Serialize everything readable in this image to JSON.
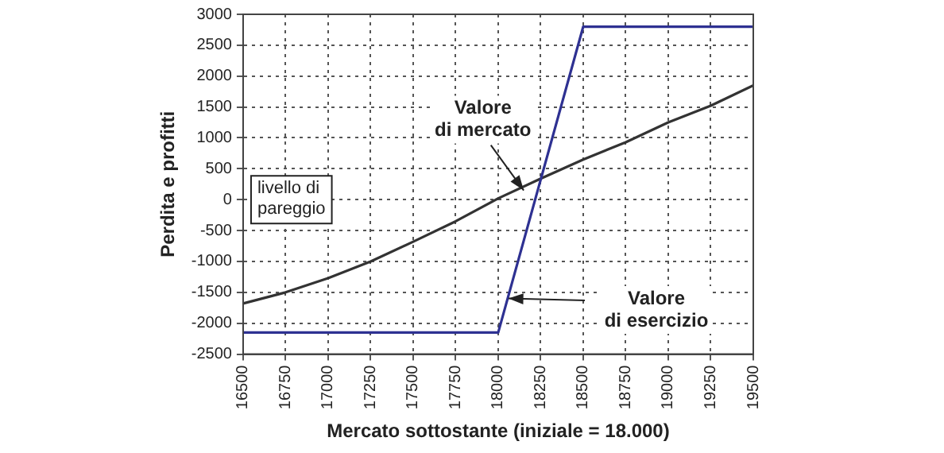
{
  "chart_data": {
    "type": "line",
    "xlabel": "Mercato sottostante (iniziale = 18.000)",
    "ylabel": "Perdita e profitti",
    "series": [
      {
        "color": "#2e3192",
        "x": [
          16500,
          18000,
          18500,
          19500
        ],
        "values": [
          -2150,
          -2150,
          2800,
          2800
        ]
      },
      {
        "color": "#333333",
        "x": [
          16500,
          16750,
          17000,
          17250,
          17500,
          17750,
          18000,
          18250,
          18500,
          18750,
          19000,
          19250,
          19500
        ],
        "values": [
          -1680,
          -1500,
          -1270,
          -1000,
          -680,
          -350,
          20,
          340,
          650,
          930,
          1250,
          1520,
          1850
        ]
      }
    ],
    "annotations": [
      {
        "text": "Valore\ndi mercato",
        "x": 18150,
        "y": 150
      },
      {
        "text": "Valore\ndi esercizio",
        "x": 18060,
        "y": -1600
      },
      "livello di\npareggio"
    ],
    "xlim": [
      16500,
      19500
    ],
    "xticks": [
      16500,
      16750,
      17000,
      17250,
      17500,
      17750,
      18000,
      18250,
      18500,
      18750,
      19000,
      19250,
      19500
    ],
    "ylim": [
      -2500,
      3000
    ],
    "yticks": [
      -2500,
      -2000,
      -1500,
      -1000,
      -500,
      0,
      500,
      1000,
      1500,
      2000,
      2500,
      3000
    ],
    "grid": true,
    "marker": "none",
    "line_style": "solid",
    "legend": false
  }
}
